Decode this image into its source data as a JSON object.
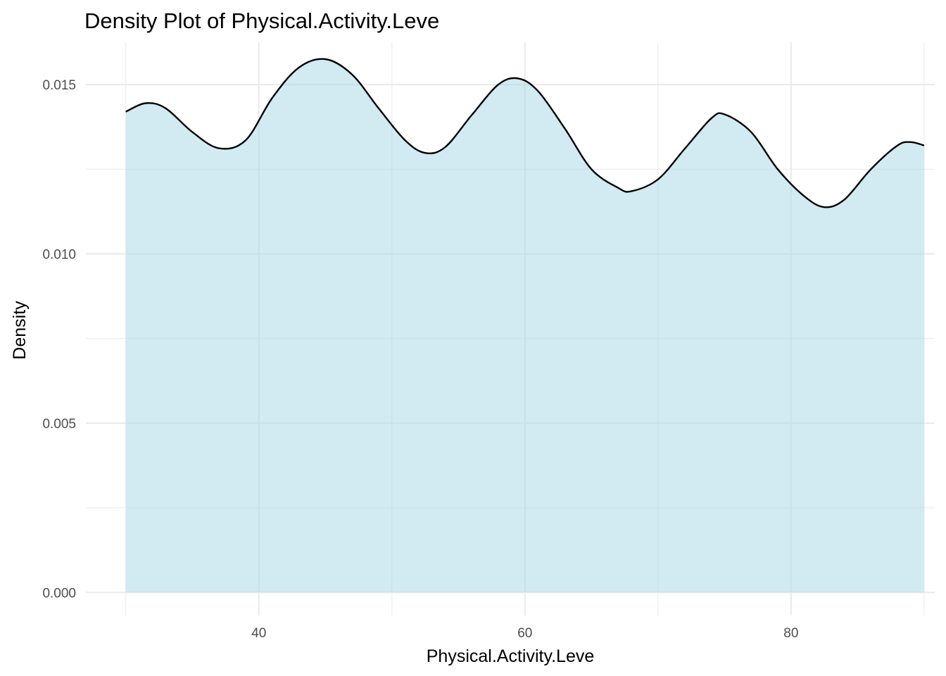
{
  "chart_data": {
    "type": "area",
    "title": "Density Plot of Physical.Activity.Leve",
    "xlabel": "Physical.Activity.Leve",
    "ylabel": "Density",
    "xlim": [
      27,
      90.8
    ],
    "ylim": [
      -0.00068,
      0.01625
    ],
    "x_ticks": [
      40,
      60,
      80
    ],
    "y_ticks": [
      0.0,
      0.005,
      0.01,
      0.015
    ],
    "x_tick_labels": [
      "40",
      "60",
      "80"
    ],
    "y_tick_labels": [
      "0.000",
      "0.005",
      "0.010",
      "0.015"
    ],
    "x_minor_ticks": [
      30,
      50,
      70,
      90
    ],
    "y_minor_ticks": [
      0.0025,
      0.0075,
      0.0125
    ],
    "grid": true,
    "legend": "none",
    "fill_color": "#add8e6",
    "fill_opacity": 0.55,
    "line_color": "#000000",
    "series": [
      {
        "x": [
          30,
          31.5,
          33,
          35,
          37,
          39,
          41,
          43,
          45,
          47,
          49,
          51,
          52.5,
          54,
          56,
          58,
          59.5,
          61,
          63,
          65,
          67,
          68,
          70,
          72,
          74,
          75,
          77,
          79,
          81,
          82.5,
          84,
          86,
          88,
          89,
          90
        ],
        "y": [
          0.0142,
          0.01445,
          0.0143,
          0.0136,
          0.01312,
          0.01335,
          0.0146,
          0.0155,
          0.01575,
          0.0153,
          0.0143,
          0.01335,
          0.01298,
          0.01315,
          0.0141,
          0.015,
          0.01518,
          0.0148,
          0.0137,
          0.0125,
          0.01195,
          0.01185,
          0.0122,
          0.0131,
          0.014,
          0.01412,
          0.0136,
          0.0125,
          0.0117,
          0.01138,
          0.0116,
          0.0125,
          0.0132,
          0.0133,
          0.0132
        ]
      }
    ]
  }
}
